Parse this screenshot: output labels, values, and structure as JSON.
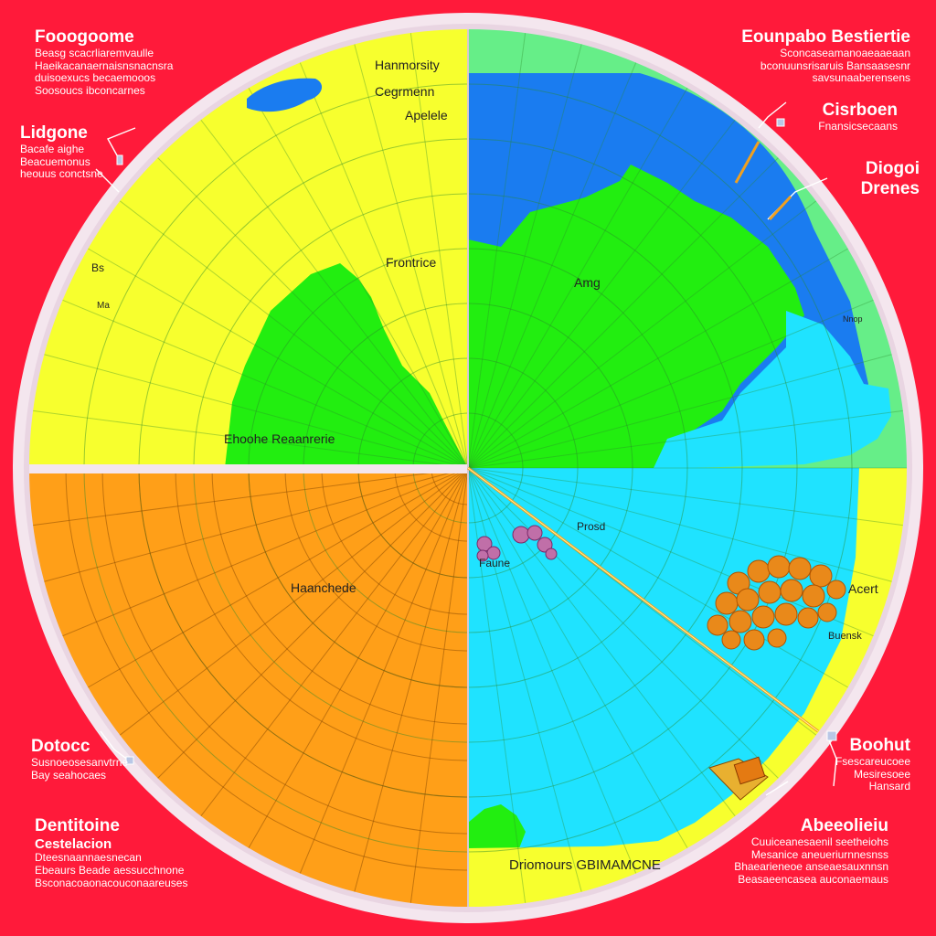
{
  "colors": {
    "background": "#ff1a3a",
    "ring": "#f4e6ee",
    "yellow": "#f7ff2e",
    "green": "#22ee10",
    "blue": "#1a7cf0",
    "cyan": "#1fe3ff",
    "orange": "#ff9f18",
    "mint": "#66ee88"
  },
  "corner_notes": {
    "top_left": {
      "title": "Fooogoome",
      "lines": [
        "Beasg scacrliaremvaulle",
        "Haeikacanaernaisnsnacnsra",
        "duisoexucs becaemooos",
        "Soosoucs ibconcarnes"
      ]
    },
    "top_right": {
      "title": "Eounpabo Bestiertie",
      "lines": [
        "Sconcaseamanoaeaaeaan",
        "bconuunsrisaruis Bansaasesnr",
        "savsunaaberensens"
      ]
    },
    "left_upper": {
      "title": "Lidgone",
      "lines": [
        "Bacafe aighe",
        "Beacuemonus",
        "heouus conctsne"
      ]
    },
    "right_upper": {
      "title": "Cisrboen",
      "lines": [
        "Fnansicsecaans"
      ]
    },
    "right_mid": {
      "title": "Diogoi Drenes",
      "lines": []
    },
    "left_lower": {
      "title": "Dotocc",
      "lines": [
        "Susnoeosesanvtrne",
        "Bay seahocaes"
      ]
    },
    "bottom_left": {
      "title": "Dentitoine",
      "subtitle": "Cestelacion",
      "lines": [
        "Dteesnaannaesnecan",
        "Ebeaurs Beade aessucchnone",
        "Bsconacoaonacouconaareuses"
      ]
    },
    "right_lower": {
      "title": "Boohut",
      "lines": [
        "Fsescareucoee",
        "Mesiresoee",
        "Hansard"
      ]
    },
    "bottom_right": {
      "title": "Abeeolieiu",
      "lines": [
        "Cuuiceanesaenil seetheiohs",
        "Mesanice aneueriurnnesnss",
        "Bhaearieneoe anseaesauxnnsn",
        "Beasaeencasea auconaemaus"
      ]
    }
  },
  "map_labels": {
    "harmorcity": "Hanmorsity",
    "ceggrmenn": "Cegrmenn",
    "apelede": "Apelele",
    "frontrice": "Frontrice",
    "amg": "Amg",
    "ehooche": "Ehoohe Reaanrerie",
    "bs": "Bs",
    "ma": "Ma",
    "hauchede": "Haanchede",
    "prosd": "Prosd",
    "faune": "Faune",
    "acert": "Acert",
    "burn": "Buensk",
    "dinmours": "Driomours GBIMAMCNE",
    "ninop": "Nnop"
  }
}
